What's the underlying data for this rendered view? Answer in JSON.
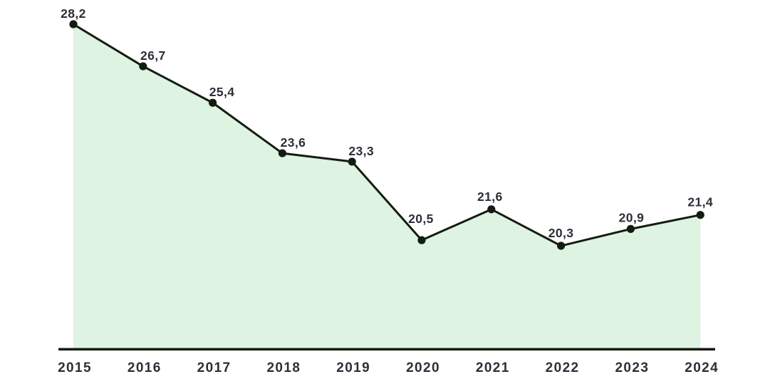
{
  "chart": {
    "colors": {
      "area_fill": "#def3e2",
      "line": "#121d10",
      "dot": "#121d10",
      "axis": "#121a0f",
      "data_label_text": "#2b2f38",
      "year_label_text": "#2b2f38",
      "background": "#ffffff"
    }
  },
  "chart_data": {
    "type": "area",
    "categories": [
      "2015",
      "2016",
      "2017",
      "2018",
      "2019",
      "2020",
      "2021",
      "2022",
      "2023",
      "2024"
    ],
    "values": [
      28.2,
      26.7,
      25.4,
      23.6,
      23.3,
      20.5,
      21.6,
      20.3,
      20.9,
      21.4
    ],
    "point_labels": [
      "28,2",
      "26,7",
      "25,4",
      "23,6",
      "23,3",
      "20,5",
      "21,6",
      "20,3",
      "20,9",
      "21,4"
    ],
    "decimal_separator": ",",
    "title": "",
    "xlabel": "",
    "ylabel": "",
    "ylim": [
      16.6,
      29.2
    ],
    "grid": false,
    "legend": false,
    "markers": true,
    "area_under_line": true
  }
}
